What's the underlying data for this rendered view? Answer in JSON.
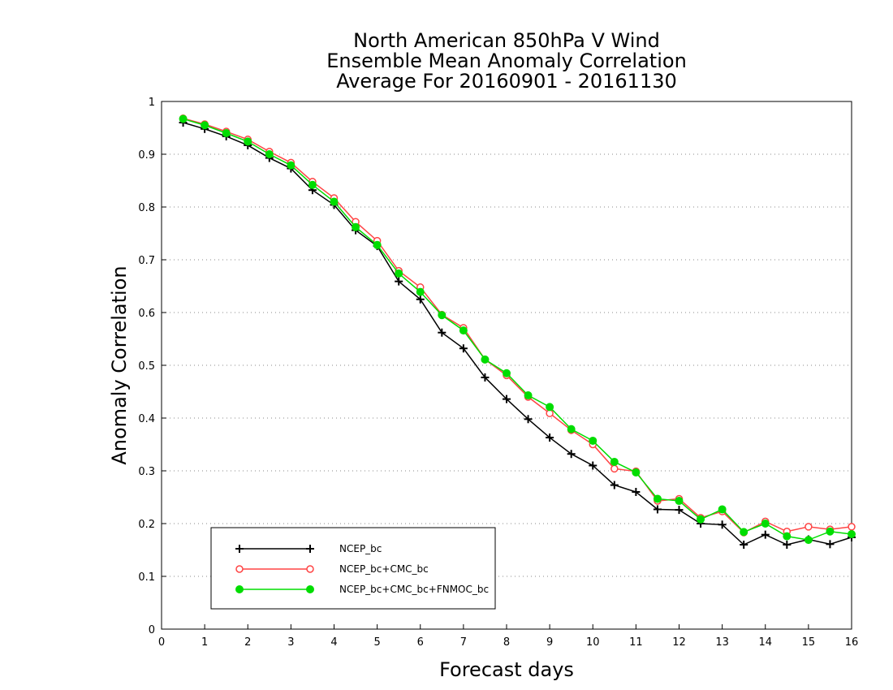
{
  "chart_data": {
    "type": "line",
    "title": [
      "North American 850hPa V Wind",
      "Ensemble Mean Anomaly Correlation",
      "Average For 20160901 - 20161130"
    ],
    "xlabel": "Forecast days",
    "ylabel": "Anomaly Correlation",
    "xlim": [
      0,
      16
    ],
    "ylim": [
      0,
      1
    ],
    "xticks": [
      "0",
      "1",
      "2",
      "3",
      "4",
      "5",
      "6",
      "7",
      "8",
      "9",
      "10",
      "11",
      "12",
      "13",
      "14",
      "15",
      "16"
    ],
    "yticks": [
      "0",
      "0.1",
      "0.2",
      "0.3",
      "0.4",
      "0.5",
      "0.6",
      "0.7",
      "0.8",
      "0.9",
      "1"
    ],
    "grid": "horizontal dotted",
    "legend_position": "bottom-left",
    "x": [
      0.5,
      1,
      1.5,
      2,
      2.5,
      3,
      3.5,
      4,
      4.5,
      5,
      5.5,
      6,
      6.5,
      7,
      7.5,
      8,
      8.5,
      9,
      9.5,
      10,
      10.5,
      11,
      11.5,
      12,
      12.5,
      13,
      13.5,
      14,
      14.5,
      15,
      15.5,
      16
    ],
    "series": [
      {
        "name": "NCEP_bc",
        "color": "#000000",
        "marker": "plus",
        "values": [
          0.96,
          0.948,
          0.934,
          0.917,
          0.893,
          0.873,
          0.832,
          0.804,
          0.756,
          0.726,
          0.659,
          0.625,
          0.562,
          0.532,
          0.477,
          0.436,
          0.398,
          0.363,
          0.332,
          0.31,
          0.273,
          0.26,
          0.227,
          0.226,
          0.2,
          0.198,
          0.16,
          0.179,
          0.16,
          0.17,
          0.161,
          0.174
        ]
      },
      {
        "name": "NCEP_bc+CMC_bc",
        "color": "#ff4444",
        "marker": "open-circle",
        "values": [
          0.968,
          0.957,
          0.943,
          0.928,
          0.905,
          0.884,
          0.848,
          0.817,
          0.772,
          0.736,
          0.679,
          0.648,
          0.596,
          0.571,
          0.511,
          0.481,
          0.44,
          0.409,
          0.377,
          0.35,
          0.304,
          0.299,
          0.243,
          0.247,
          0.211,
          0.223,
          0.183,
          0.204,
          0.185,
          0.194,
          0.189,
          0.194
        ]
      },
      {
        "name": "NCEP_bc+CMC_bc+FNMOC_bc",
        "color": "#00dd00",
        "marker": "filled-circle",
        "values": [
          0.967,
          0.955,
          0.94,
          0.924,
          0.9,
          0.879,
          0.842,
          0.81,
          0.762,
          0.728,
          0.674,
          0.639,
          0.595,
          0.566,
          0.511,
          0.485,
          0.443,
          0.421,
          0.379,
          0.357,
          0.317,
          0.297,
          0.247,
          0.243,
          0.208,
          0.227,
          0.184,
          0.2,
          0.176,
          0.169,
          0.185,
          0.18
        ]
      }
    ]
  }
}
